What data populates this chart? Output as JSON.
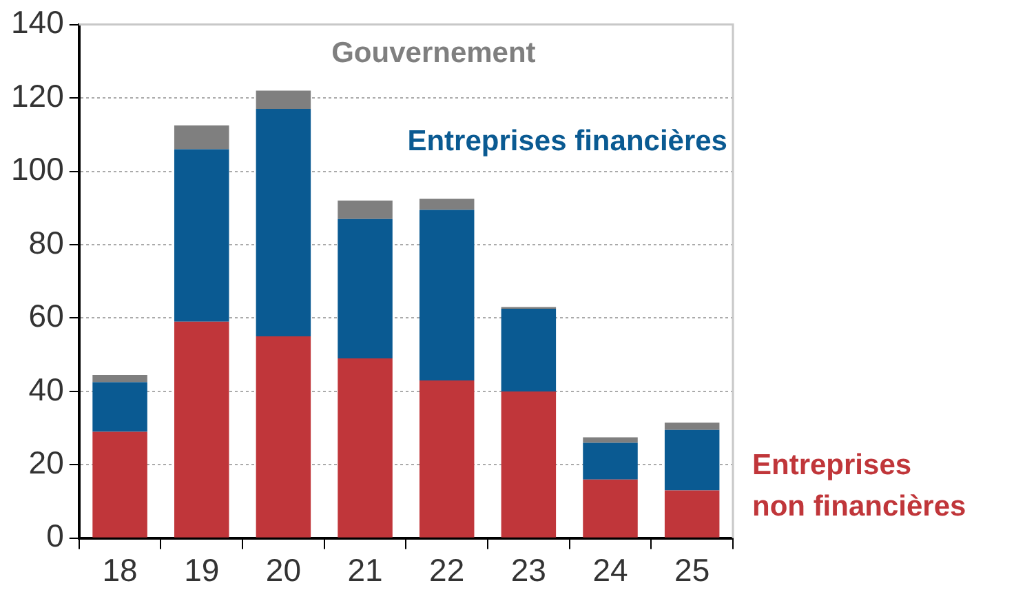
{
  "chart_data": {
    "type": "bar",
    "stacked": true,
    "categories": [
      "18",
      "19",
      "20",
      "21",
      "22",
      "23",
      "24",
      "25"
    ],
    "series": [
      {
        "name": "Entreprises non financières",
        "color": "#c0363a",
        "values": [
          29,
          59,
          55,
          49,
          43,
          40,
          16,
          13
        ]
      },
      {
        "name": "Entreprises financières",
        "color": "#0a5a92",
        "values": [
          13.5,
          47,
          62,
          38,
          46.5,
          22.5,
          10,
          16.5
        ]
      },
      {
        "name": "Gouvernement",
        "color": "#7f7f7f",
        "values": [
          2,
          6.5,
          5,
          5,
          3,
          0.5,
          1.5,
          2
        ]
      }
    ],
    "ylim": [
      0,
      140
    ],
    "yticks": [
      0,
      20,
      40,
      60,
      80,
      100,
      120,
      140
    ],
    "grid": "y",
    "legend": false
  }
}
